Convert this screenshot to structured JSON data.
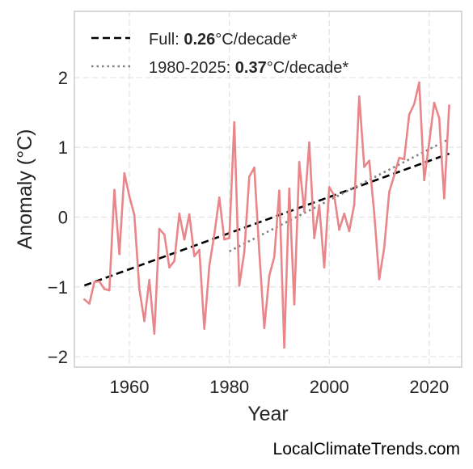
{
  "chart_data": {
    "type": "line",
    "title": "",
    "xlabel": "Year",
    "ylabel": "Anomaly (°C)",
    "xlim": [
      1949,
      2026.5
    ],
    "ylim": [
      -2.15,
      2.95
    ],
    "x_ticks": [
      1960,
      1980,
      2000,
      2020
    ],
    "x_tick_labels": [
      "1960",
      "1980",
      "2000",
      "2020"
    ],
    "y_ticks": [
      -2,
      -1,
      0,
      1,
      2
    ],
    "y_tick_labels": [
      "−2",
      "−1",
      "0",
      "1",
      "2"
    ],
    "grid": true,
    "legend_position": "top-left",
    "colors": {
      "series": "#e8868a",
      "full_trend": "#000000",
      "recent_trend": "#808080",
      "grid": "#e3e3e3",
      "frame": "#cccccc"
    },
    "series": [
      {
        "x": [
          1951,
          1952,
          1953,
          1954,
          1955,
          1956,
          1957,
          1958,
          1959,
          1960,
          1961,
          1962,
          1963,
          1964,
          1965,
          1966,
          1967,
          1968,
          1969,
          1970,
          1971,
          1972,
          1973,
          1974,
          1975,
          1976,
          1977,
          1978,
          1979,
          1980,
          1981,
          1982,
          1983,
          1984,
          1985,
          1986,
          1987,
          1988,
          1989,
          1990,
          1991,
          1992,
          1993,
          1994,
          1995,
          1996,
          1997,
          1998,
          1999,
          2000,
          2001,
          2002,
          2003,
          2004,
          2005,
          2006,
          2007,
          2008,
          2009,
          2010,
          2011,
          2012,
          2013,
          2014,
          2015,
          2016,
          2017,
          2018,
          2019,
          2020,
          2021,
          2022,
          2023,
          2024
        ],
        "values": [
          -1.18,
          -1.24,
          -0.93,
          -0.92,
          -1.03,
          -1.05,
          0.39,
          -0.53,
          0.63,
          0.3,
          0.03,
          -1.03,
          -1.49,
          -0.9,
          -1.67,
          -0.17,
          -0.25,
          -0.72,
          -0.63,
          0.05,
          -0.32,
          0.04,
          -0.56,
          -0.47,
          -1.6,
          -0.7,
          -0.25,
          0.28,
          -0.32,
          -0.3,
          1.36,
          -0.98,
          -0.5,
          0.58,
          0.71,
          -0.5,
          -1.59,
          -0.84,
          -0.57,
          0.38,
          -1.87,
          0.41,
          -1.25,
          0.79,
          0.08,
          1.07,
          -0.3,
          0.17,
          -0.72,
          0.43,
          0.31,
          -0.18,
          0.05,
          -0.2,
          0.18,
          1.73,
          0.72,
          0.81,
          0.06,
          -0.89,
          -0.44,
          0.36,
          0.6,
          0.85,
          0.83,
          1.47,
          1.62,
          1.93,
          0.53,
          1.07,
          1.64,
          1.42,
          0.27,
          1.6
        ]
      }
    ],
    "trends": [
      {
        "x": [
          1951,
          2024
        ],
        "y": [
          -0.98,
          0.91
        ],
        "style": "dashed",
        "label_prefix": "Full: ",
        "label_value": "0.26",
        "label_suffix": "°C/decade*"
      },
      {
        "x": [
          1980,
          2024
        ],
        "y": [
          -0.49,
          1.12
        ],
        "style": "dotted",
        "label_prefix": "1980-2025: ",
        "label_value": "0.37",
        "label_suffix": "°C/decade*"
      }
    ]
  },
  "credit": "LocalClimateTrends.com"
}
